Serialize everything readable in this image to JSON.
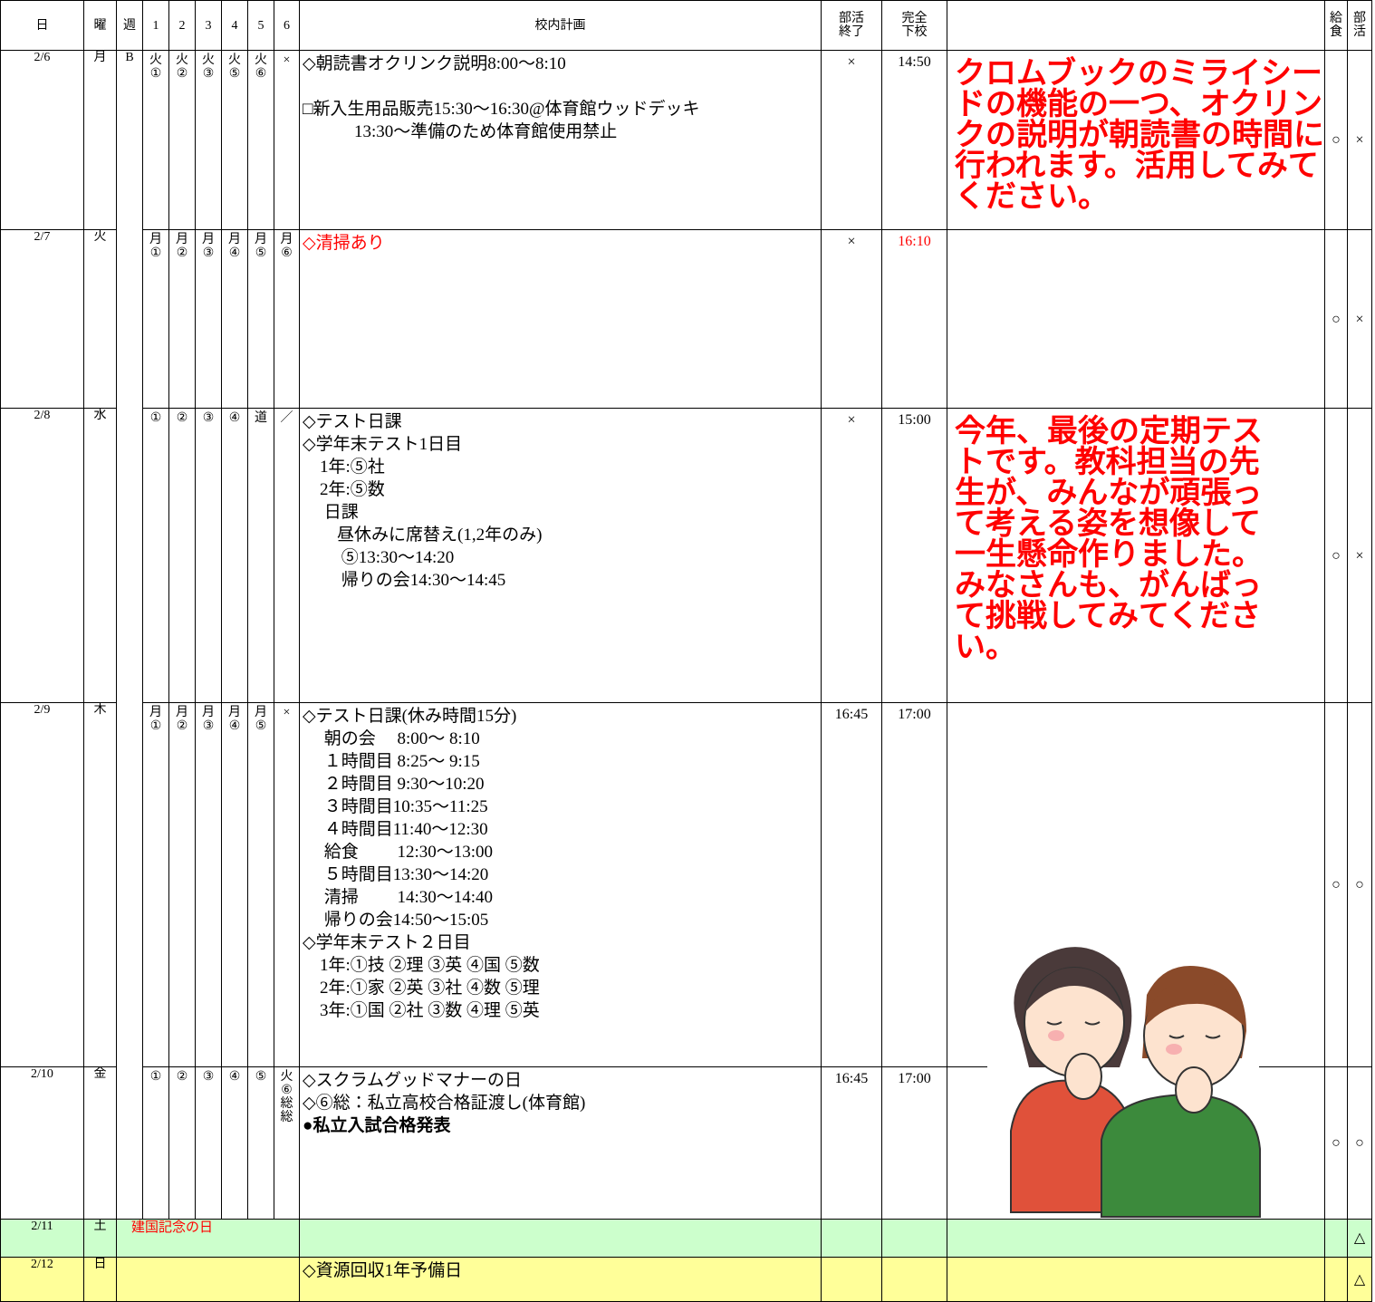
{
  "header": {
    "date": "日",
    "weekday": "曜",
    "week": "週",
    "periods": [
      "1",
      "2",
      "3",
      "4",
      "5",
      "6"
    ],
    "plan": "校内計画",
    "club_end": [
      "部活",
      "終了"
    ],
    "dismissal": [
      "完全",
      "下校"
    ],
    "lunch": [
      "給",
      "食"
    ],
    "club": [
      "部",
      "活"
    ]
  },
  "rows": [
    {
      "date": "2/6",
      "weekday": "月",
      "week": "B",
      "periods": [
        [
          "火",
          "①"
        ],
        [
          "火",
          "②"
        ],
        [
          "火",
          "③"
        ],
        [
          "火",
          "⑤"
        ],
        [
          "火",
          "⑥"
        ],
        [
          "×"
        ]
      ],
      "plan": [
        [
          "◇朝読書オクリンク説明8:00〜8:10"
        ],
        [
          "□新入生用品販売15:30〜16:30@体育館ウッドデッキ",
          "　　　13:30〜準備のため体育館使用禁止"
        ]
      ],
      "club_end": "×",
      "dismissal": "14:50",
      "comment": [
        "クロムブックのミライシー",
        "ドの機能の一つ、オクリン",
        "クの説明が朝読書の時間に",
        "行われます。活用してみて",
        "ください。"
      ],
      "lunch": "○",
      "club": "×"
    },
    {
      "date": "2/7",
      "weekday": "火",
      "periods": [
        [
          "月",
          "①"
        ],
        [
          "月",
          "②"
        ],
        [
          "月",
          "③"
        ],
        [
          "月",
          "④"
        ],
        [
          "月",
          "⑤"
        ],
        [
          "月",
          "⑥"
        ]
      ],
      "plan": [
        [
          "◇清掃あり"
        ]
      ],
      "plan_color": "#ff0000",
      "club_end": "×",
      "dismissal": "16:10",
      "dismissal_color": "#ff0000",
      "lunch": "○",
      "club": "×"
    },
    {
      "date": "2/8",
      "weekday": "水",
      "periods": [
        [
          "①"
        ],
        [
          "②"
        ],
        [
          "③"
        ],
        [
          "④"
        ],
        [
          "道"
        ],
        [
          "／"
        ]
      ],
      "plan": [
        [
          "◇テスト日課",
          "◇学年末テスト1日目",
          "　1年:⑤社",
          "　2年:⑤数",
          "　 日課",
          "　　昼休みに席替え(1,2年のみ)",
          "　　 ⑤13:30〜14:20",
          "　　 帰りの会14:30〜14:45"
        ]
      ],
      "club_end": "×",
      "dismissal": "15:00",
      "comment": [
        "今年、最後の定期テス",
        "トです。教科担当の先",
        "生が、みんなが頑張っ",
        "て考える姿を想像して",
        "一生懸命作りました。",
        "みなさんも、がんばっ",
        "て挑戦してみてくださ",
        "い。"
      ],
      "lunch": "○",
      "club": "×"
    },
    {
      "date": "2/9",
      "weekday": "木",
      "periods": [
        [
          "月",
          "①"
        ],
        [
          "月",
          "②"
        ],
        [
          "月",
          "③"
        ],
        [
          "月",
          "④"
        ],
        [
          "月",
          "⑤"
        ],
        [
          "×"
        ]
      ],
      "plan": [
        [
          "◇テスト日課(休み時間15分)",
          "　 朝の会　 8:00〜 8:10",
          "　 １時間目 8:25〜 9:15",
          "　 ２時間目 9:30〜10:20",
          "　 ３時間目10:35〜11:25",
          "　 ４時間目11:40〜12:30",
          "　 給食　　 12:30〜13:00",
          "　 ５時間目13:30〜14:20",
          "　 清掃　　 14:30〜14:40",
          "　 帰りの会14:50〜15:05",
          "◇学年末テスト２日目",
          "　1年:①技 ②理 ③英 ④国 ⑤数",
          "　2年:①家 ②英 ③社 ④数 ⑤理",
          "　3年:①国 ②社 ③数 ④理 ⑤英"
        ]
      ],
      "club_end": "16:45",
      "dismissal": "17:00",
      "lunch": "○",
      "club": "○"
    },
    {
      "date": "2/10",
      "weekday": "金",
      "periods": [
        [
          "①"
        ],
        [
          "②"
        ],
        [
          "③"
        ],
        [
          "④"
        ],
        [
          "⑤"
        ],
        [
          "火",
          "⑥",
          "総",
          "総"
        ]
      ],
      "plan": [
        [
          "◇スクラムグッドマナーの日",
          "◇⑥総：私立高校合格証渡し(体育館)",
          {
            "text": "●私立入試合格発表",
            "bold": true
          }
        ]
      ],
      "club_end": "16:45",
      "dismissal": "17:00",
      "lunch": "○",
      "club": "○"
    },
    {
      "date": "2/11",
      "weekday": "土",
      "holiday": "建国記念の日",
      "row_color": "#ccffcc",
      "club": "△"
    },
    {
      "date": "2/12",
      "weekday": "日",
      "plan": [
        [
          "◇資源回収1年予備日"
        ]
      ],
      "row_color": "#ffff99",
      "club": "△"
    }
  ]
}
